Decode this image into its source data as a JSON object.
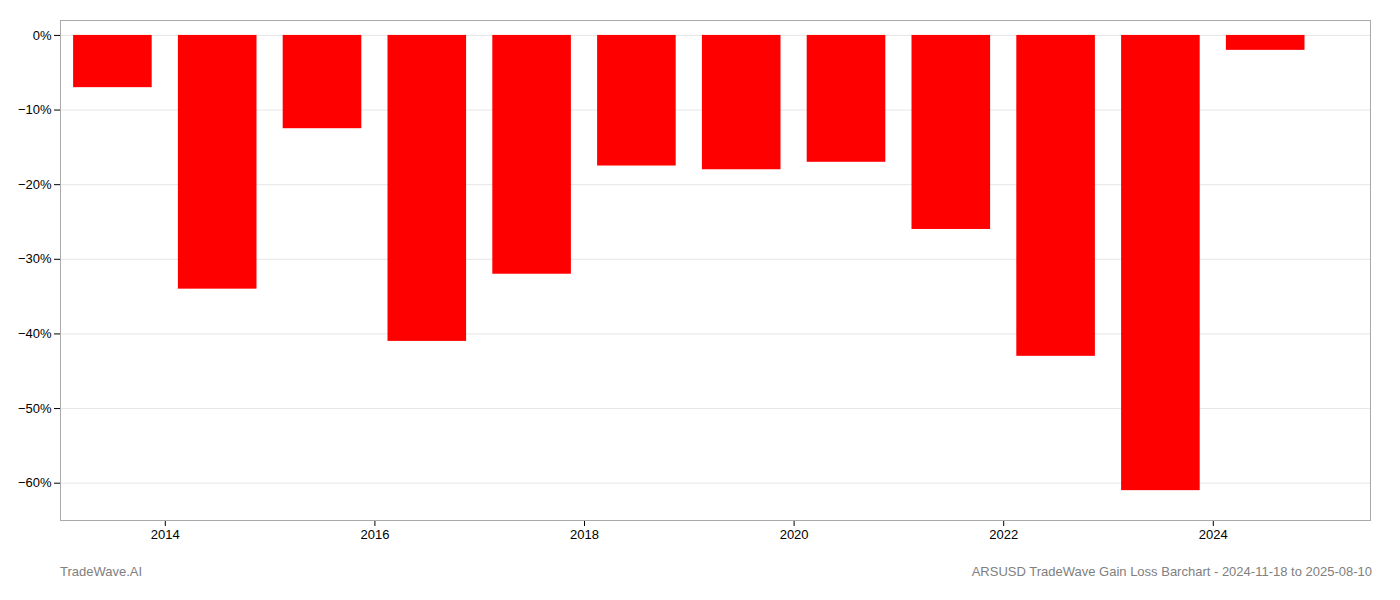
{
  "chart_data": {
    "type": "bar",
    "x": [
      2013.5,
      2014.5,
      2015.5,
      2016.5,
      2017.5,
      2018.5,
      2019.5,
      2020.5,
      2021.5,
      2022.5,
      2023.5,
      2024.5
    ],
    "values": [
      -7.0,
      -34.0,
      -12.5,
      -41.0,
      -32.0,
      -17.5,
      -18.0,
      -17.0,
      -26.0,
      -43.0,
      -61.0,
      -2.0
    ],
    "color": "#ff0000",
    "xlim": [
      2013.0,
      2025.5
    ],
    "xticks": [
      2014,
      2016,
      2018,
      2020,
      2022,
      2024
    ],
    "ylim": [
      -65,
      2
    ],
    "yticks": [
      {
        "value": 0,
        "label": "0%"
      },
      {
        "value": -10,
        "label": "−10%"
      },
      {
        "value": -20,
        "label": "−20%"
      },
      {
        "value": -30,
        "label": "−30%"
      },
      {
        "value": -40,
        "label": "−40%"
      },
      {
        "value": -50,
        "label": "−50%"
      },
      {
        "value": -60,
        "label": "−60%"
      }
    ],
    "grid": true,
    "annotations": [
      "TradeWave.AI",
      "ARSUSD TradeWave Gain Loss Barchart - 2024-11-18 to 2025-08-10"
    ]
  }
}
